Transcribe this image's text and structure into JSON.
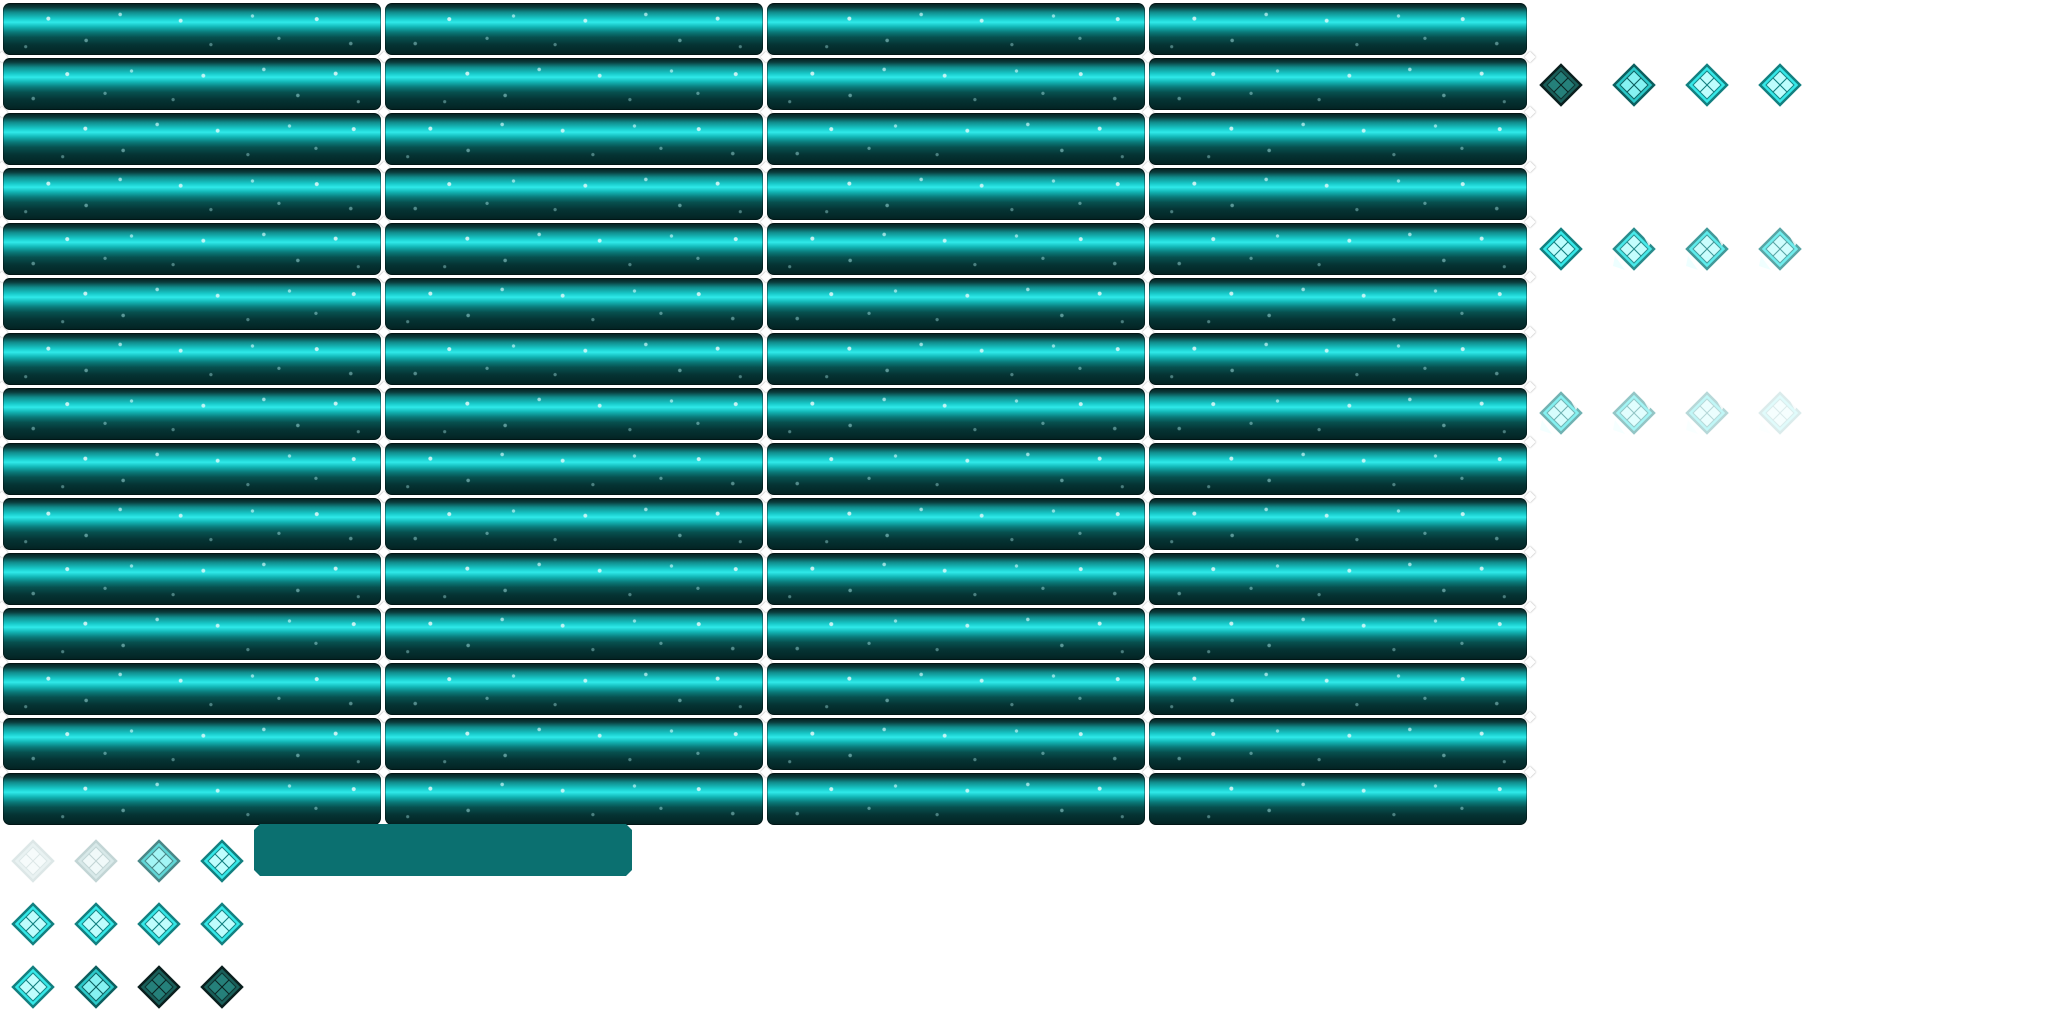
{
  "sheet": {
    "background": "#ffffff",
    "description_kind": "sprite-sheet",
    "bar_columns": 4,
    "bar_rows": 15
  },
  "colors": {
    "cyan_bright": "#2fe9e9",
    "cyan_mid": "#12b5b5",
    "teal_dark": "#053434",
    "fill_bar": "#0b7070",
    "gem_dark": "#1f7a73",
    "gem_light": "#5ff2f2",
    "node": "#ffffff"
  },
  "gem_groups": {
    "right_row_1": [
      {
        "icon": "diamond-gem-dark-icon",
        "state": "dark"
      },
      {
        "icon": "diamond-gem-icon",
        "state": "medium"
      },
      {
        "icon": "diamond-gem-icon",
        "state": "bright"
      },
      {
        "icon": "diamond-gem-icon",
        "state": "bright"
      }
    ],
    "right_row_2": [
      {
        "icon": "diamond-gem-shatter-icon",
        "state": "bright",
        "opacity": 1.0
      },
      {
        "icon": "diamond-gem-shatter-icon",
        "state": "shatter",
        "opacity": 0.9
      },
      {
        "icon": "diamond-gem-shatter-icon",
        "state": "shatter",
        "opacity": 0.8
      },
      {
        "icon": "diamond-gem-shatter-icon",
        "state": "shatter",
        "opacity": 0.7
      }
    ],
    "right_row_3": [
      {
        "icon": "diamond-gem-shatter-icon",
        "state": "shatter",
        "opacity": 0.6
      },
      {
        "icon": "diamond-gem-shatter-icon",
        "state": "shatter",
        "opacity": 0.45
      },
      {
        "icon": "diamond-gem-shatter-icon",
        "state": "shatter",
        "opacity": 0.3
      },
      {
        "icon": "diamond-gem-shatter-icon",
        "state": "shatter",
        "opacity": 0.15
      }
    ],
    "bottom_row_1": [
      {
        "icon": "diamond-gem-faded-icon",
        "state": "faded",
        "opacity": 0.25
      },
      {
        "icon": "diamond-gem-faded-icon",
        "state": "faded",
        "opacity": 0.45
      },
      {
        "icon": "diamond-gem-icon",
        "state": "medium",
        "opacity": 0.75
      },
      {
        "icon": "diamond-gem-icon",
        "state": "bright",
        "opacity": 1.0
      }
    ],
    "bottom_row_2": [
      {
        "icon": "diamond-gem-icon",
        "state": "bright",
        "opacity": 1.0
      },
      {
        "icon": "diamond-gem-icon",
        "state": "bright",
        "opacity": 1.0
      },
      {
        "icon": "diamond-gem-icon",
        "state": "bright",
        "opacity": 1.0
      },
      {
        "icon": "diamond-gem-icon",
        "state": "bright",
        "opacity": 1.0
      }
    ],
    "bottom_row_3": [
      {
        "icon": "diamond-gem-icon",
        "state": "bright",
        "opacity": 1.0
      },
      {
        "icon": "diamond-gem-icon",
        "state": "medium",
        "opacity": 1.0
      },
      {
        "icon": "diamond-gem-dark-icon",
        "state": "dark",
        "opacity": 1.0
      },
      {
        "icon": "diamond-gem-dark-icon",
        "state": "dark",
        "opacity": 1.0
      }
    ]
  },
  "fill_bar": {
    "icon": "solid-teal-bar"
  }
}
